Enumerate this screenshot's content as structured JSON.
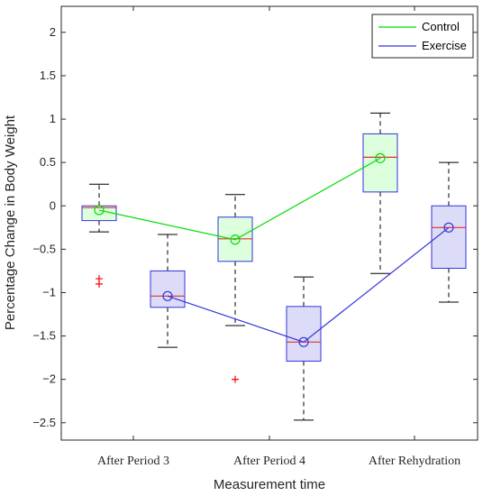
{
  "chart_data": {
    "type": "box",
    "xlabel": "Measurement time",
    "ylabel": "Percentage Change in Body Weight",
    "ylim": [
      -2.7,
      2.3
    ],
    "yticks": [
      "2",
      "1.5",
      "1",
      "0.5",
      "0",
      "-0.5",
      "-1",
      "-1.5",
      "-2",
      "-2.5"
    ],
    "categories": [
      "After Period 3",
      "After Period 4",
      "After Rehydration"
    ],
    "legend_position": "top-right",
    "grid": false,
    "series": [
      {
        "name": "Control",
        "line_color": "#00dd00",
        "box_fill": "#ddffdd",
        "boxes": [
          {
            "whisker_low": -0.3,
            "q1": -0.17,
            "median": -0.02,
            "q3": 0.0,
            "whisker_high": 0.25,
            "mean": -0.05,
            "outliers": [
              -0.84,
              -0.9
            ]
          },
          {
            "whisker_low": -1.38,
            "q1": -0.64,
            "median": -0.38,
            "q3": -0.13,
            "whisker_high": 0.13,
            "mean": -0.39,
            "outliers": [
              -2.0
            ]
          },
          {
            "whisker_low": -0.78,
            "q1": 0.16,
            "median": 0.56,
            "q3": 0.83,
            "whisker_high": 1.07,
            "mean": 0.55,
            "outliers": []
          }
        ]
      },
      {
        "name": "Exercise",
        "line_color": "#3333dd",
        "box_fill": "#dcdcf8",
        "boxes": [
          {
            "whisker_low": -1.63,
            "q1": -1.17,
            "median": -1.04,
            "q3": -0.75,
            "whisker_high": -0.33,
            "mean": -1.04,
            "outliers": []
          },
          {
            "whisker_low": -2.47,
            "q1": -1.79,
            "median": -1.57,
            "q3": -1.16,
            "whisker_high": -0.82,
            "mean": -1.57,
            "outliers": []
          },
          {
            "whisker_low": -1.11,
            "q1": -0.72,
            "median": -0.25,
            "q3": 0.0,
            "whisker_high": 0.5,
            "mean": -0.25,
            "outliers": []
          }
        ]
      }
    ],
    "colors": {
      "median": "#e03030",
      "outlier": "#ff0000",
      "whisker": "#000000",
      "axis": "#262626"
    }
  }
}
